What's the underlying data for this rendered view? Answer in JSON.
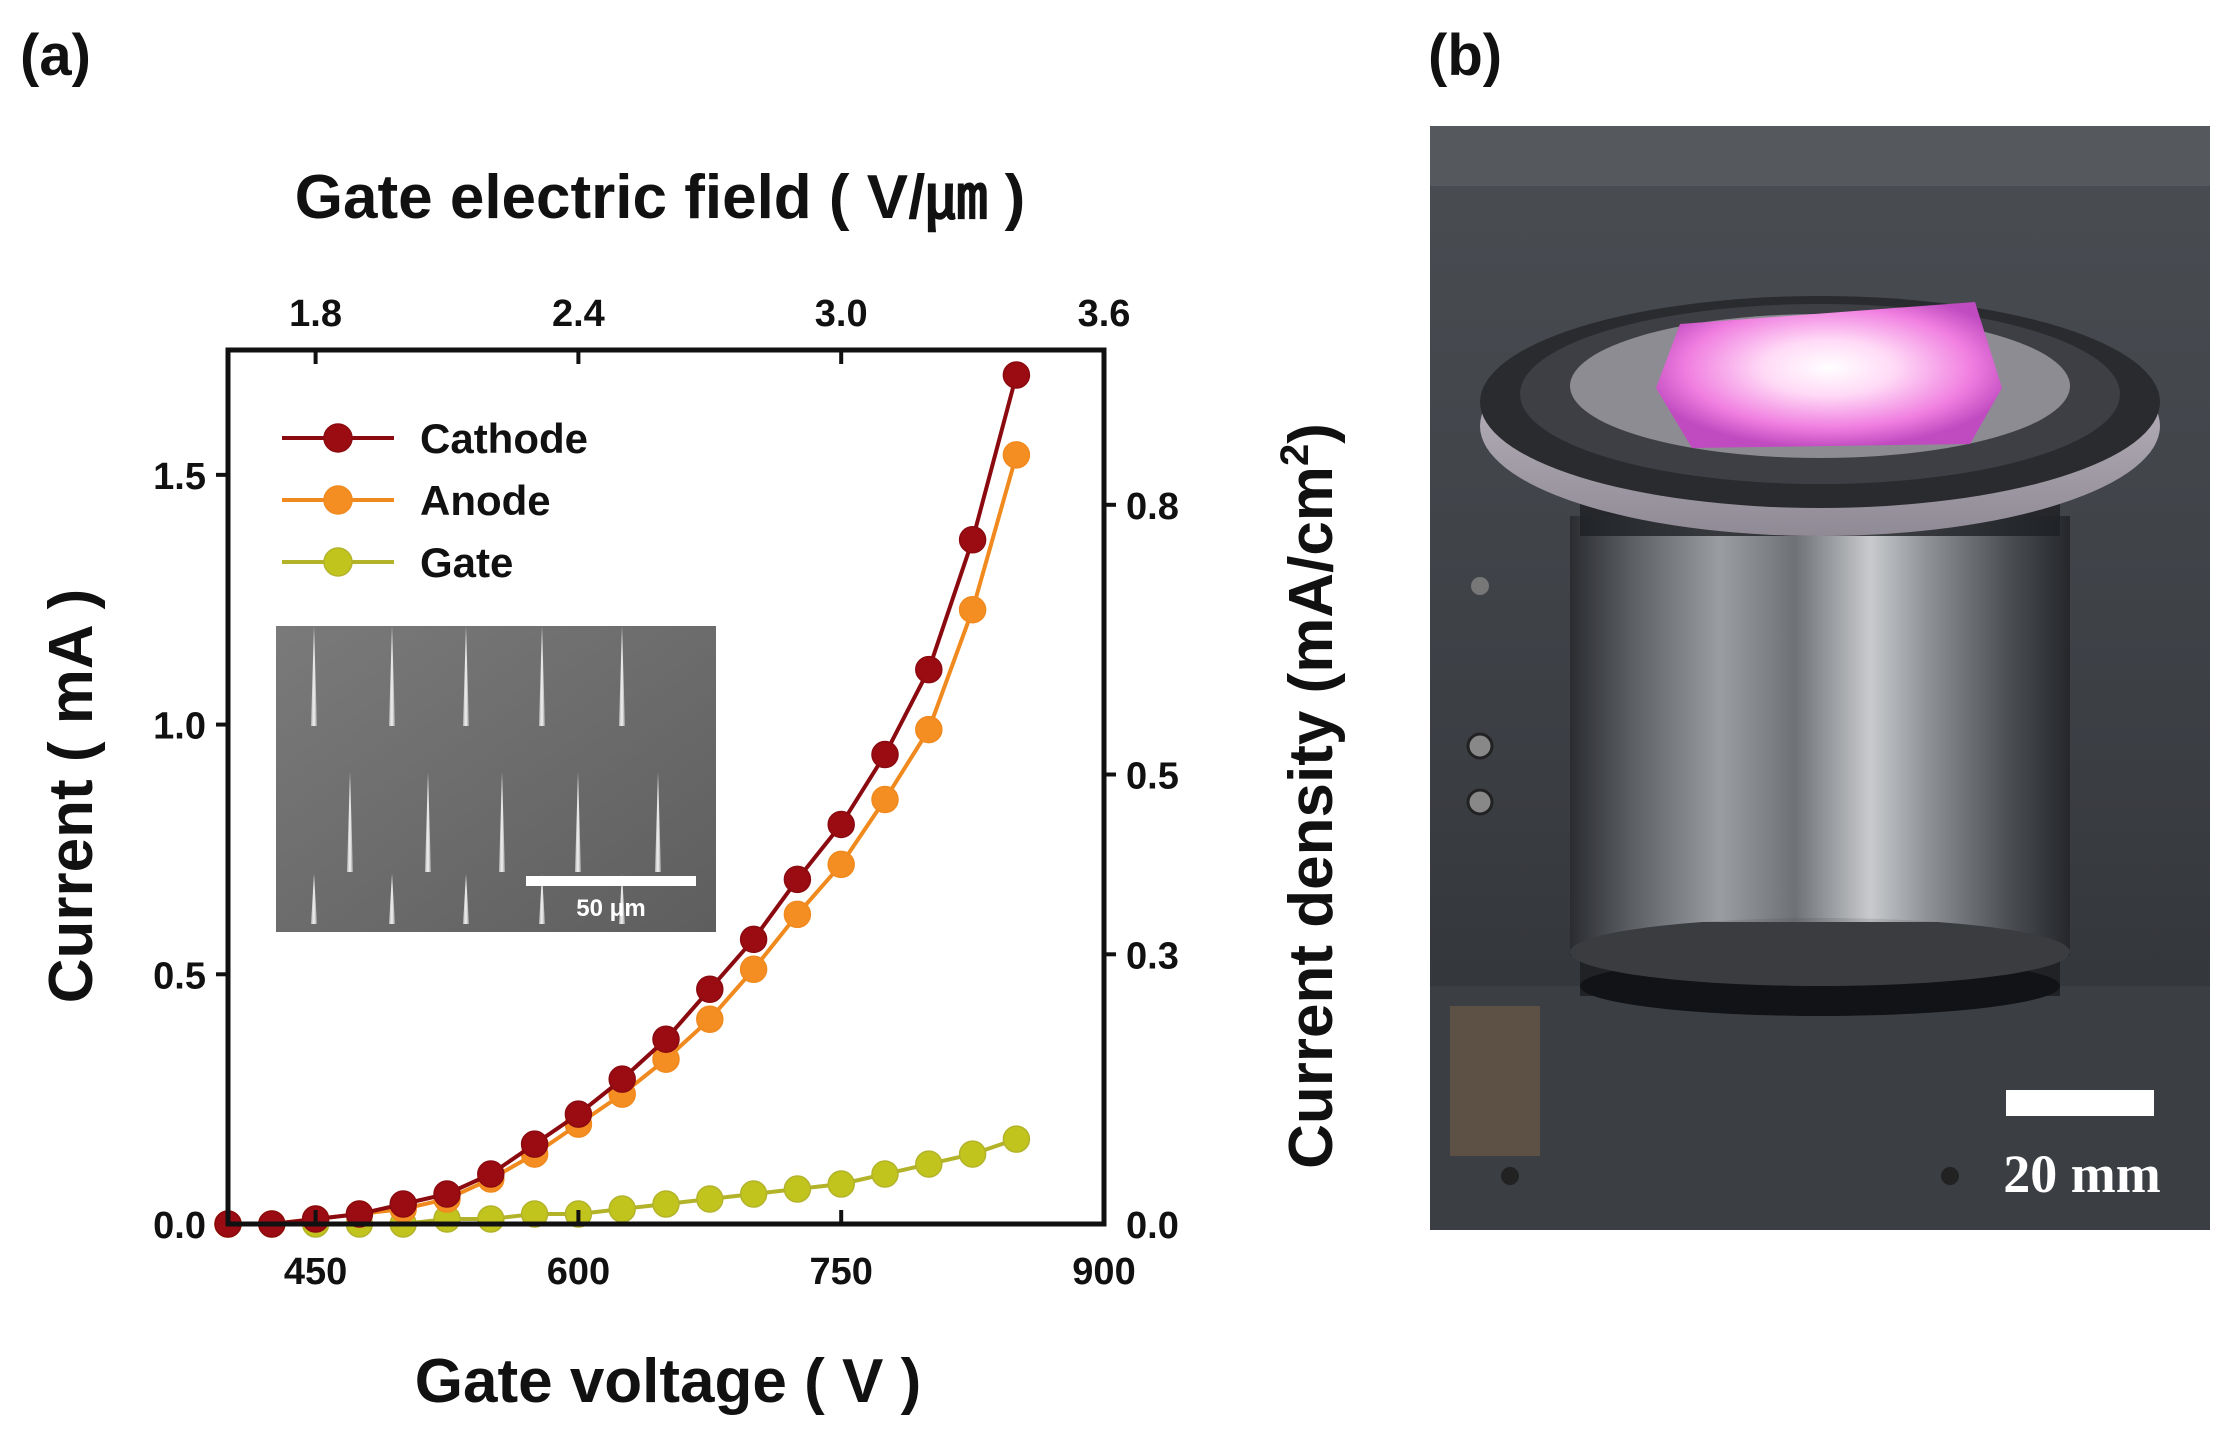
{
  "panels": {
    "a": "(a)",
    "b": "(b)"
  },
  "chart_data": {
    "type": "line",
    "xlabel": "Gate voltage ( V )",
    "ylabel": "Current ( mA )",
    "y2label": "Current density (mA/cm",
    "y2label_sup": "2",
    "y2label_close": ")",
    "top_xlabel": "Gate electric field ( V/㎛ )",
    "xlim": [
      400,
      900
    ],
    "ylim": [
      0,
      1.75
    ],
    "y2lim": [
      0,
      0.9722
    ],
    "top_xlim": [
      1.6,
      3.6
    ],
    "x_ticks": [
      450,
      600,
      750,
      900
    ],
    "y_ticks": [
      0.0,
      0.5,
      1.0,
      1.5
    ],
    "y_tick_labels": [
      "0.0",
      "0.5",
      "1.0",
      "1.5"
    ],
    "y2_ticks": [
      0.0,
      0.3,
      0.5,
      0.8
    ],
    "y2_tick_labels": [
      "0.0",
      "0.3",
      "0.5",
      "0.8"
    ],
    "top_x_ticks": [
      1.8,
      2.4,
      3.0,
      3.6
    ],
    "top_x_tick_labels": [
      "1.8",
      "2.4",
      "3.0",
      "3.6"
    ],
    "x": [
      400,
      425,
      450,
      475,
      500,
      525,
      550,
      575,
      600,
      625,
      650,
      675,
      700,
      725,
      750,
      775,
      800,
      825,
      850
    ],
    "series": [
      {
        "name": "Cathode",
        "color": "#8b0a10",
        "marker_color": "#9a0c12",
        "values": [
          0.0,
          0.0,
          0.01,
          0.02,
          0.04,
          0.06,
          0.1,
          0.16,
          0.22,
          0.29,
          0.37,
          0.47,
          0.57,
          0.69,
          0.8,
          0.94,
          1.11,
          1.37,
          1.7
        ]
      },
      {
        "name": "Anode",
        "color": "#f08a1e",
        "marker_color": "#f58e22",
        "values": [
          0.0,
          0.0,
          0.01,
          0.02,
          0.03,
          0.05,
          0.09,
          0.14,
          0.2,
          0.26,
          0.33,
          0.41,
          0.51,
          0.62,
          0.72,
          0.85,
          0.99,
          1.23,
          1.54
        ]
      },
      {
        "name": "Gate",
        "color": "#b3b32a",
        "marker_color": "#c2c41e",
        "values": [
          0.0,
          0.0,
          0.0,
          0.0,
          0.0,
          0.01,
          0.01,
          0.02,
          0.02,
          0.03,
          0.04,
          0.05,
          0.06,
          0.07,
          0.08,
          0.1,
          0.12,
          0.14,
          0.17
        ]
      }
    ],
    "legend_position": "top-left",
    "inset": {
      "scale_bar_label": "50 μm"
    }
  },
  "photo": {
    "scale_bar_label": "20 mm"
  }
}
